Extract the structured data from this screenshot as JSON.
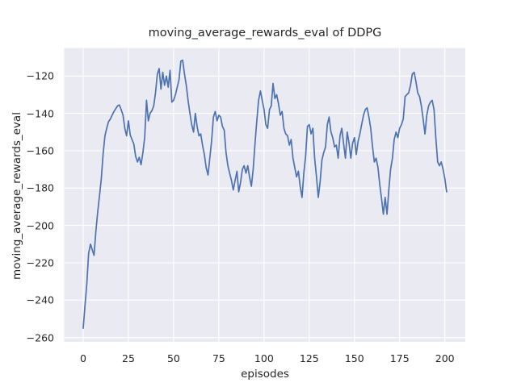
{
  "chart_data": {
    "type": "line",
    "title": "moving_average_rewards_eval of DDPG",
    "xlabel": "episodes",
    "ylabel": "moving_average_rewards_eval",
    "grid": true,
    "legend_position": "none",
    "background_color": "#eaeaf2",
    "grid_color": "#ffffff",
    "text_color": "#262626",
    "xticks": [
      0,
      25,
      50,
      75,
      100,
      125,
      150,
      175,
      200
    ],
    "yticks": [
      -120,
      -140,
      -160,
      -180,
      -200,
      -220,
      -240,
      -260
    ],
    "xlim": [
      -10.5,
      211.3
    ],
    "ylim": [
      -262.3,
      -105.0
    ],
    "series": [
      {
        "name": "moving_average_rewards_eval",
        "color": "#4c72b0",
        "x": [
          0,
          1,
          2,
          3,
          4,
          5,
          6,
          7,
          8,
          9,
          10,
          11,
          12,
          13,
          14,
          15,
          16,
          17,
          18,
          19,
          20,
          21,
          22,
          23,
          24,
          25,
          26,
          27,
          28,
          29,
          30,
          31,
          32,
          33,
          34,
          35,
          36,
          37,
          38,
          39,
          40,
          41,
          42,
          43,
          44,
          45,
          46,
          47,
          48,
          49,
          50,
          51,
          52,
          53,
          54,
          55,
          56,
          57,
          58,
          59,
          60,
          61,
          62,
          63,
          64,
          65,
          66,
          67,
          68,
          69,
          70,
          71,
          72,
          73,
          74,
          75,
          76,
          77,
          78,
          79,
          80,
          81,
          82,
          83,
          84,
          85,
          86,
          87,
          88,
          89,
          90,
          91,
          92,
          93,
          94,
          95,
          96,
          97,
          98,
          99,
          100,
          101,
          102,
          103,
          104,
          105,
          106,
          107,
          108,
          109,
          110,
          111,
          112,
          113,
          114,
          115,
          116,
          117,
          118,
          119,
          120,
          121,
          122,
          123,
          124,
          125,
          126,
          127,
          128,
          129,
          130,
          131,
          132,
          133,
          134,
          135,
          136,
          137,
          138,
          139,
          140,
          141,
          142,
          143,
          144,
          145,
          146,
          147,
          148,
          149,
          150,
          151,
          152,
          153,
          154,
          155,
          156,
          157,
          158,
          159,
          160,
          161,
          162,
          163,
          164,
          165,
          166,
          167,
          168,
          169,
          170,
          171,
          172,
          173,
          174,
          175,
          176,
          177,
          178,
          179,
          180,
          181,
          182,
          183,
          184,
          185,
          186,
          187,
          188,
          189,
          190,
          191,
          192,
          193,
          194,
          195,
          196,
          197,
          198,
          199,
          200,
          201
        ],
        "y": [
          -255,
          -243,
          -231,
          -215,
          -210,
          -213,
          -216,
          -203,
          -193,
          -184,
          -175,
          -162,
          -152,
          -148,
          -144.5,
          -143,
          -141,
          -139,
          -137.5,
          -136,
          -135.5,
          -138,
          -141,
          -148,
          -152,
          -144,
          -151.5,
          -154,
          -156.5,
          -163,
          -166,
          -163.5,
          -167.5,
          -161,
          -153,
          -133,
          -144,
          -140,
          -138.5,
          -136,
          -129,
          -119,
          -116,
          -127,
          -118,
          -125,
          -120,
          -126,
          -117,
          -134,
          -133,
          -130,
          -126,
          -122,
          -112,
          -111.5,
          -119,
          -125,
          -133,
          -140,
          -146,
          -150,
          -140,
          -147,
          -152,
          -151,
          -157,
          -162,
          -169,
          -173,
          -164,
          -155,
          -142,
          -139,
          -144,
          -141,
          -142,
          -147,
          -149,
          -161,
          -168,
          -172,
          -176,
          -181,
          -176,
          -171,
          -182,
          -177,
          -170,
          -168,
          -172,
          -168,
          -174,
          -179,
          -170,
          -156,
          -144,
          -133,
          -128,
          -133,
          -138,
          -146,
          -148,
          -138,
          -136,
          -124,
          -132,
          -130,
          -135,
          -141,
          -139,
          -148,
          -151,
          -152,
          -157,
          -154,
          -164,
          -169,
          -174,
          -171,
          -179,
          -185,
          -172,
          -163,
          -147,
          -146,
          -151,
          -148,
          -164,
          -174,
          -185,
          -177,
          -165,
          -161,
          -158,
          -146,
          -142,
          -150,
          -153,
          -158,
          -157,
          -164,
          -152,
          -148,
          -156,
          -164,
          -150,
          -156,
          -164,
          -156,
          -153,
          -162,
          -155,
          -151,
          -146,
          -141,
          -138,
          -137,
          -142,
          -148,
          -158,
          -166,
          -164,
          -169,
          -178,
          -186,
          -194,
          -185,
          -194,
          -181,
          -170,
          -164,
          -154,
          -150,
          -153,
          -148,
          -146,
          -143,
          -131,
          -130,
          -129,
          -125,
          -119,
          -118,
          -123,
          -129,
          -131,
          -136,
          -143,
          -151,
          -141,
          -136,
          -134,
          -133,
          -138,
          -153,
          -166,
          -168,
          -166,
          -170,
          -175,
          -182
        ]
      }
    ]
  }
}
